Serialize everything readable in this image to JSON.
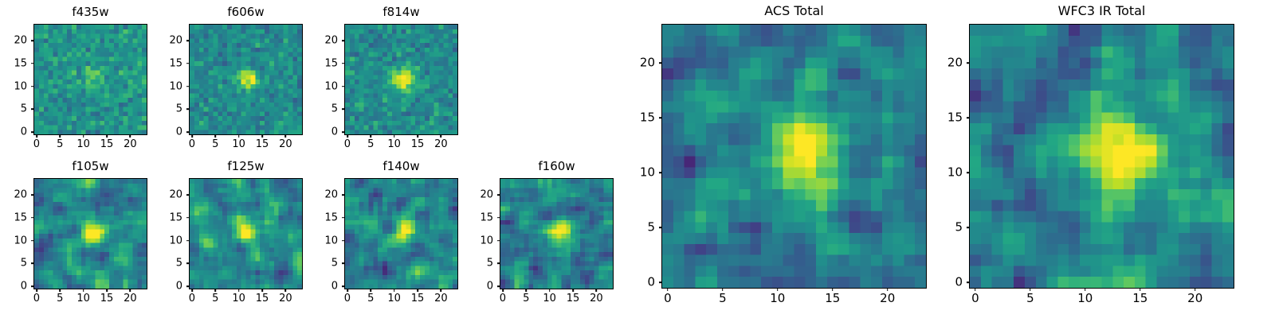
{
  "figure": {
    "background": "#ffffff",
    "axes_color": "#000000",
    "text_color": "#000000",
    "colormap": "viridis"
  },
  "chart_data": [
    {
      "type": "heatmap",
      "title": "f435w",
      "grid": [
        24,
        24
      ],
      "colormap": "viridis",
      "origin": "lower",
      "xlim": [
        -0.5,
        23.5
      ],
      "ylim": [
        -0.5,
        23.5
      ],
      "xticks": [
        0,
        5,
        10,
        15,
        20
      ],
      "yticks": [
        0,
        5,
        10,
        15,
        20
      ],
      "xlabel": "",
      "ylabel": "",
      "source": {
        "x": 12,
        "y": 12,
        "amplitude": 0.24,
        "sigma": 1.7
      },
      "noise": {
        "seed": 101,
        "sigma": 0.17,
        "background": 0.52,
        "smooth": false
      }
    },
    {
      "type": "heatmap",
      "title": "f606w",
      "grid": [
        24,
        24
      ],
      "colormap": "viridis",
      "origin": "lower",
      "xlim": [
        -0.5,
        23.5
      ],
      "ylim": [
        -0.5,
        23.5
      ],
      "xticks": [
        0,
        5,
        10,
        15,
        20
      ],
      "yticks": [
        0,
        5,
        10,
        15,
        20
      ],
      "xlabel": "",
      "ylabel": "",
      "source": {
        "x": 12,
        "y": 11.5,
        "amplitude": 0.55,
        "sigma": 1.5
      },
      "noise": {
        "seed": 202,
        "sigma": 0.15,
        "background": 0.48,
        "smooth": false
      }
    },
    {
      "type": "heatmap",
      "title": "f814w",
      "grid": [
        24,
        24
      ],
      "colormap": "viridis",
      "origin": "lower",
      "xlim": [
        -0.5,
        23.5
      ],
      "ylim": [
        -0.5,
        23.5
      ],
      "xticks": [
        0,
        5,
        10,
        15,
        20
      ],
      "yticks": [
        0,
        5,
        10,
        15,
        20
      ],
      "xlabel": "",
      "ylabel": "",
      "source": {
        "x": 12,
        "y": 11.5,
        "amplitude": 0.55,
        "sigma": 1.8
      },
      "noise": {
        "seed": 303,
        "sigma": 0.15,
        "background": 0.48,
        "smooth": false
      }
    },
    {
      "type": "heatmap",
      "title": "f105w",
      "grid": [
        24,
        24
      ],
      "colormap": "viridis",
      "origin": "lower",
      "xlim": [
        -0.5,
        23.5
      ],
      "ylim": [
        -0.5,
        23.5
      ],
      "xticks": [
        0,
        5,
        10,
        15,
        20
      ],
      "yticks": [
        0,
        5,
        10,
        15,
        20
      ],
      "xlabel": "",
      "ylabel": "",
      "source": {
        "x": 12,
        "y": 12,
        "amplitude": 0.58,
        "sigma": 1.8
      },
      "noise": {
        "seed": 404,
        "sigma": 0.3,
        "background": 0.45,
        "smooth": true
      }
    },
    {
      "type": "heatmap",
      "title": "f125w",
      "grid": [
        24,
        24
      ],
      "colormap": "viridis",
      "origin": "lower",
      "xlim": [
        -0.5,
        23.5
      ],
      "ylim": [
        -0.5,
        23.5
      ],
      "xticks": [
        0,
        5,
        10,
        15,
        20
      ],
      "yticks": [
        0,
        5,
        10,
        15,
        20
      ],
      "xlabel": "",
      "ylabel": "",
      "source": {
        "x": 12,
        "y": 12,
        "amplitude": 0.58,
        "sigma": 1.9
      },
      "noise": {
        "seed": 505,
        "sigma": 0.3,
        "background": 0.45,
        "smooth": true
      }
    },
    {
      "type": "heatmap",
      "title": "f140w",
      "grid": [
        24,
        24
      ],
      "colormap": "viridis",
      "origin": "lower",
      "xlim": [
        -0.5,
        23.5
      ],
      "ylim": [
        -0.5,
        23.5
      ],
      "xticks": [
        0,
        5,
        10,
        15,
        20
      ],
      "yticks": [
        0,
        5,
        10,
        15,
        20
      ],
      "xlabel": "",
      "ylabel": "",
      "source": {
        "x": 12.5,
        "y": 12,
        "amplitude": 0.58,
        "sigma": 2.0
      },
      "noise": {
        "seed": 606,
        "sigma": 0.3,
        "background": 0.45,
        "smooth": true
      }
    },
    {
      "type": "heatmap",
      "title": "f160w",
      "grid": [
        24,
        24
      ],
      "colormap": "viridis",
      "origin": "lower",
      "xlim": [
        -0.5,
        23.5
      ],
      "ylim": [
        -0.5,
        23.5
      ],
      "xticks": [
        0,
        5,
        10,
        15,
        20
      ],
      "yticks": [
        0,
        5,
        10,
        15,
        20
      ],
      "xlabel": "",
      "ylabel": "",
      "source": {
        "x": 12,
        "y": 11.5,
        "amplitude": 0.6,
        "sigma": 2.0
      },
      "noise": {
        "seed": 707,
        "sigma": 0.3,
        "background": 0.45,
        "smooth": true
      }
    },
    {
      "type": "heatmap",
      "title": "ACS Total",
      "grid": [
        24,
        24
      ],
      "colormap": "viridis",
      "origin": "lower",
      "xlim": [
        -0.5,
        23.5
      ],
      "ylim": [
        -0.5,
        23.5
      ],
      "xticks": [
        0,
        5,
        10,
        15,
        20
      ],
      "yticks": [
        0,
        5,
        10,
        15,
        20
      ],
      "xlabel": "",
      "ylabel": "",
      "source": {
        "x": 12.5,
        "y": 11.5,
        "amplitude": 0.62,
        "sigma": 2.3
      },
      "noise": {
        "seed": 808,
        "sigma": 0.3,
        "background": 0.45,
        "smooth": true
      }
    },
    {
      "type": "heatmap",
      "title": "WFC3 IR Total",
      "grid": [
        24,
        24
      ],
      "colormap": "viridis",
      "origin": "lower",
      "xlim": [
        -0.5,
        23.5
      ],
      "ylim": [
        -0.5,
        23.5
      ],
      "xticks": [
        0,
        5,
        10,
        15,
        20
      ],
      "yticks": [
        0,
        5,
        10,
        15,
        20
      ],
      "xlabel": "",
      "ylabel": "",
      "source": {
        "x": 12.5,
        "y": 11.5,
        "amplitude": 0.66,
        "sigma": 2.5
      },
      "noise": {
        "seed": 909,
        "sigma": 0.32,
        "background": 0.44,
        "smooth": true
      }
    }
  ]
}
